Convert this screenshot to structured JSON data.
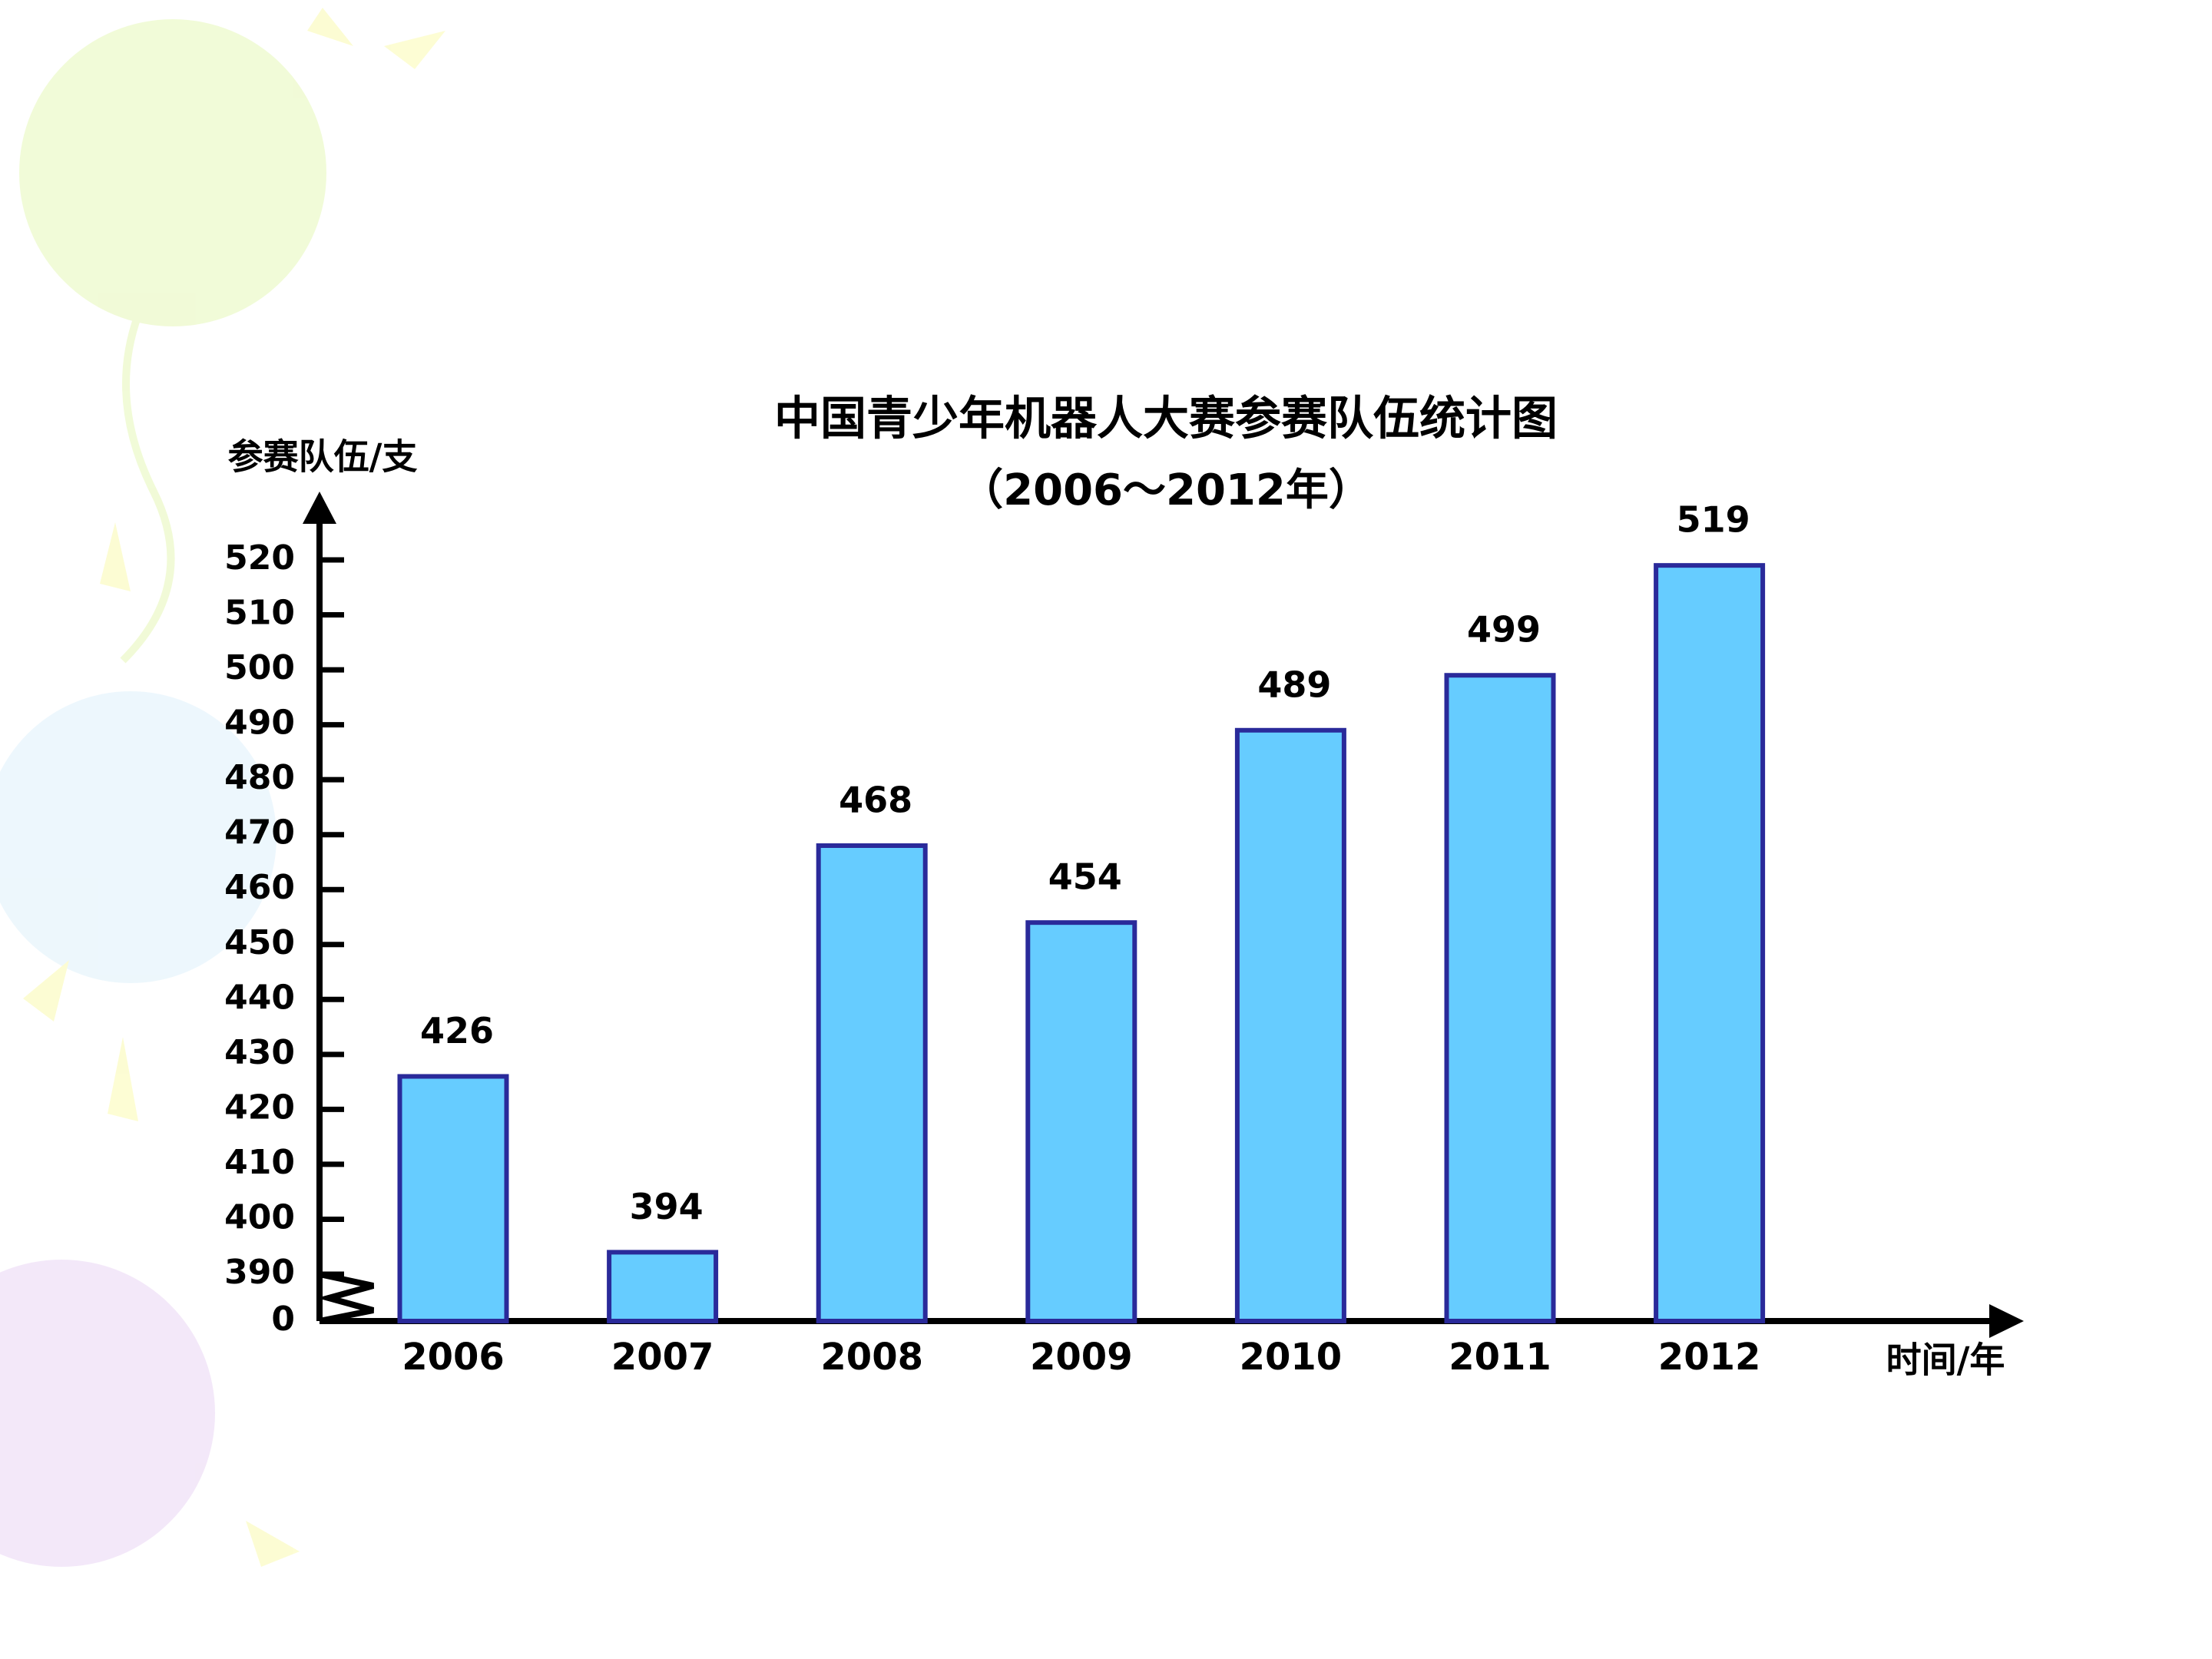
{
  "chart_data": {
    "type": "bar",
    "title": "中国青少年机器人大赛参赛队伍统计图",
    "subtitle": "（2006～2012年）",
    "y_label": "参赛队伍/支",
    "x_label": "时间/年",
    "categories": [
      "2006",
      "2007",
      "2008",
      "2009",
      "2010",
      "2011",
      "2012"
    ],
    "values": [
      426,
      394,
      468,
      454,
      489,
      499,
      519
    ],
    "color": "#66ccff",
    "edge_color": "#2a2a9a",
    "ylim": [
      0,
      520
    ],
    "yticks": [
      0,
      390,
      400,
      410,
      420,
      430,
      440,
      450,
      460,
      470,
      480,
      490,
      500,
      510,
      520
    ],
    "axis_break": true,
    "grid": false
  }
}
